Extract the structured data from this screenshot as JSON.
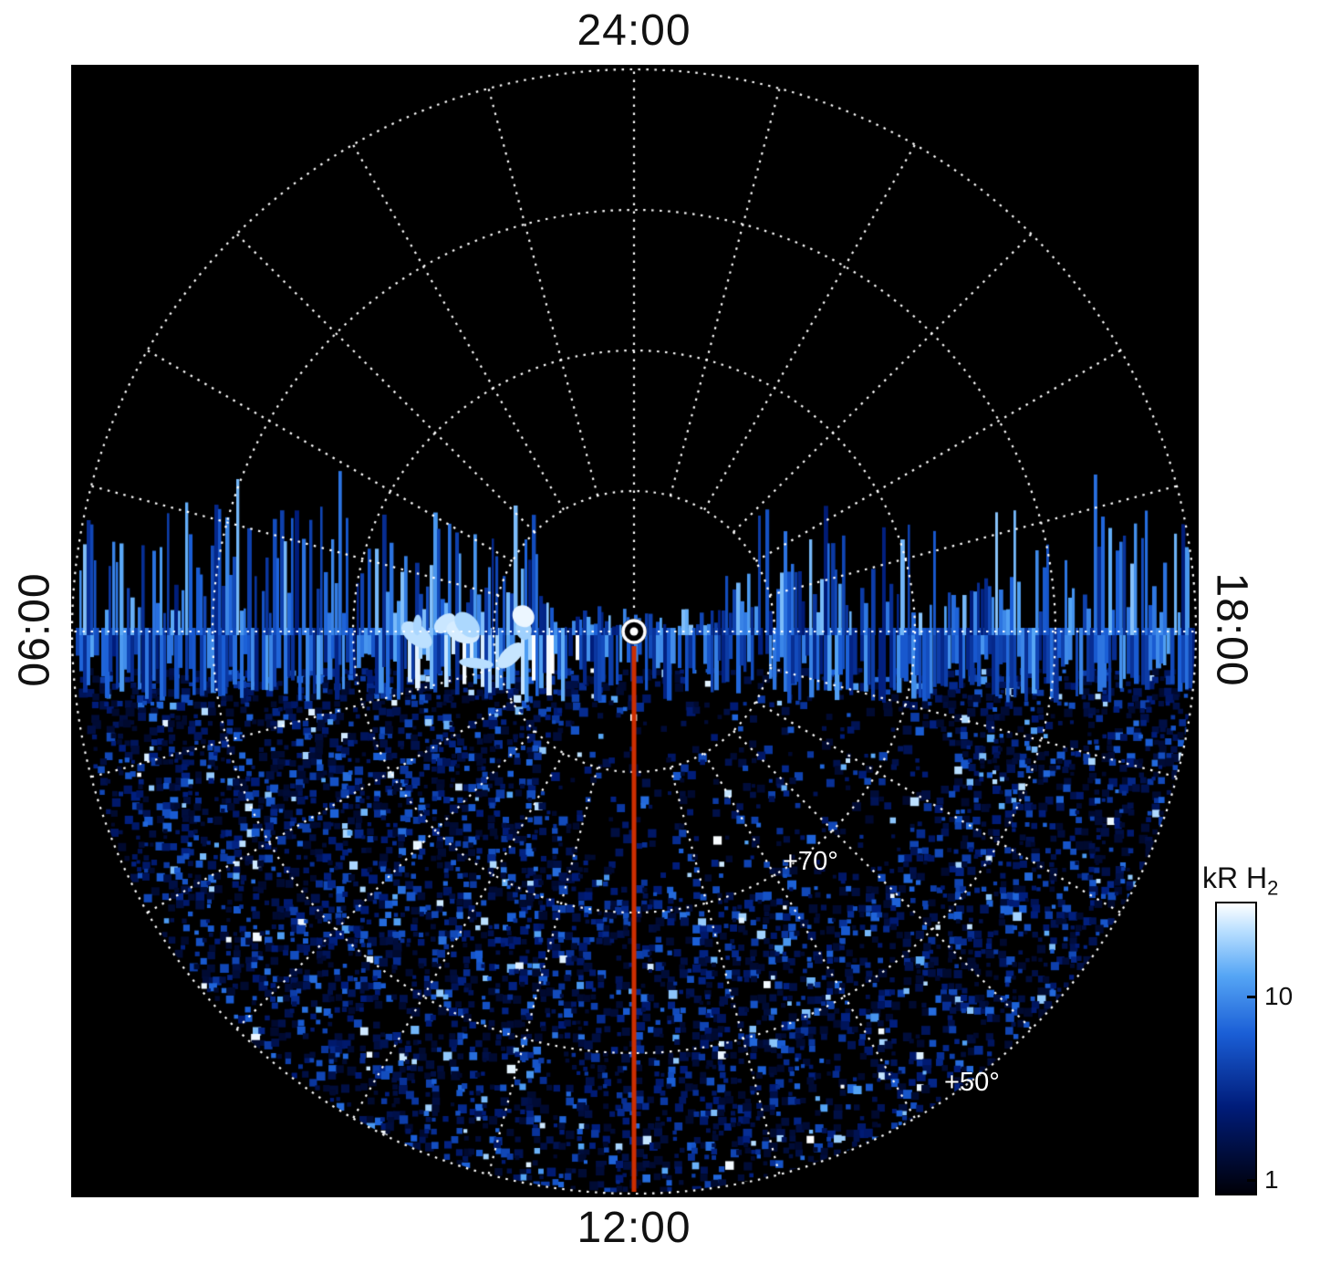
{
  "page": {
    "background": "#ffffff"
  },
  "plot": {
    "background": "#000000",
    "grid_color": "#ffffff",
    "meridian_line_color": "#cc2e00",
    "labels": {
      "top": "24:00",
      "bottom": "12:00",
      "left": "06:00",
      "right": "18:00"
    },
    "ring_labels": [
      {
        "text": "+70°"
      },
      {
        "text": "+50°"
      }
    ]
  },
  "colorbar": {
    "title_main": "kR H",
    "title_sub": "2",
    "ticks": [
      "10",
      "1"
    ],
    "scale": "log",
    "min": 1,
    "max": 30
  },
  "chart_data": {
    "type": "heatmap",
    "projection": "polar-local-time",
    "title": "",
    "description": "Polar projection map of H2 emission brightness (kR) versus latitude and local time. Local time 24:00 at top, 12:00 at bottom, 06:00 left, 18:00 right. Dotted white latitude rings every 10 degrees from the pole (+90) at center to +50 at the outer edge, with +70 and +50 rings labeled. Emission data (noisy blue speckle) fills only the dayside half below the dawn-dusk (06:00-18:00) line, with a bright ragged streaked band hugging the dawn-dusk line and a very bright patch left of center; the nightside upper half is black (no data). A solid red-orange line marks the 12:00 meridian from the pole to the outer edge, and a white circled-dot symbol marks the pole.",
    "angular_axis": {
      "labels": [
        "24:00",
        "06:00",
        "12:00",
        "18:00"
      ],
      "spoke_interval_deg": 15
    },
    "radial_axis": {
      "pole_latitude_deg": 90,
      "edge_latitude_deg": 50,
      "ring_interval_deg": 10,
      "labeled_rings": [
        "+70°",
        "+50°"
      ]
    },
    "colorbar": {
      "label": "kR H2",
      "scale": "log",
      "min": 1,
      "max": 30,
      "tick_values": [
        10,
        1
      ]
    },
    "features": [
      "no data in nightside (24:00) hemisphere",
      "bright streaked emission band along dawn-dusk line",
      "brightest white patch at dawn side left of pole",
      "sparse random speckle (1-10 kR) over dayside hemisphere",
      "darker void region just equatorward of pole on 12:00-18:00 side"
    ],
    "render": {
      "seed": 20240613,
      "colormap": [
        [
          0.0,
          "#000008"
        ],
        [
          0.3,
          "#001c7a"
        ],
        [
          0.55,
          "#1a5ed6"
        ],
        [
          0.75,
          "#55a5f5"
        ],
        [
          0.9,
          "#b5ddff"
        ],
        [
          1.0,
          "#ffffff"
        ]
      ],
      "speckle_density": 0.5,
      "band_streak_probability": 0.92,
      "spike_probability": 0.8
    }
  }
}
